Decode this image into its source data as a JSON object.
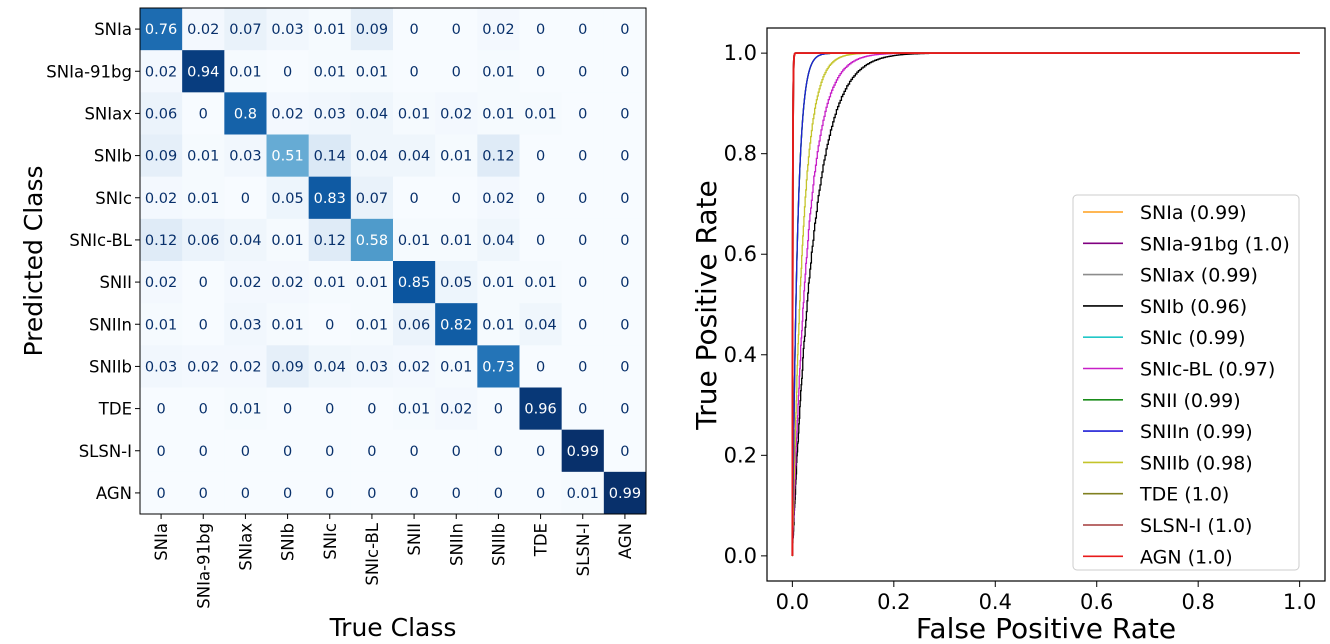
{
  "chart_data": [
    {
      "type": "heatmap",
      "title": "",
      "xlabel": "True Class",
      "ylabel": "Predicted Class",
      "categories": [
        "SNIa",
        "SNIa-91bg",
        "SNIax",
        "SNIb",
        "SNIc",
        "SNIc-BL",
        "SNII",
        "SNIIn",
        "SNIIb",
        "TDE",
        "SLSN-I",
        "AGN"
      ],
      "values": [
        [
          0.76,
          0.02,
          0.07,
          0.03,
          0.01,
          0.09,
          0,
          0,
          0.02,
          0,
          0,
          0
        ],
        [
          0.02,
          0.94,
          0.01,
          0,
          0.01,
          0.01,
          0,
          0,
          0.01,
          0,
          0,
          0
        ],
        [
          0.06,
          0,
          0.8,
          0.02,
          0.03,
          0.04,
          0.01,
          0.02,
          0.01,
          0.01,
          0,
          0
        ],
        [
          0.09,
          0.01,
          0.03,
          0.51,
          0.14,
          0.04,
          0.04,
          0.01,
          0.12,
          0,
          0,
          0
        ],
        [
          0.02,
          0.01,
          0,
          0.05,
          0.83,
          0.07,
          0,
          0,
          0.02,
          0,
          0,
          0
        ],
        [
          0.12,
          0.06,
          0.04,
          0.01,
          0.12,
          0.58,
          0.01,
          0.01,
          0.04,
          0,
          0,
          0
        ],
        [
          0.02,
          0,
          0.02,
          0.02,
          0.01,
          0.01,
          0.85,
          0.05,
          0.01,
          0.01,
          0,
          0
        ],
        [
          0.01,
          0,
          0.03,
          0.01,
          0,
          0.01,
          0.06,
          0.82,
          0.01,
          0.04,
          0,
          0
        ],
        [
          0.03,
          0.02,
          0.02,
          0.09,
          0.04,
          0.03,
          0.02,
          0.01,
          0.73,
          0,
          0,
          0
        ],
        [
          0,
          0,
          0.01,
          0,
          0,
          0,
          0.01,
          0.02,
          0,
          0.96,
          0,
          0
        ],
        [
          0,
          0,
          0,
          0,
          0,
          0,
          0,
          0,
          0,
          0,
          0.99,
          0
        ],
        [
          0,
          0,
          0,
          0,
          0,
          0,
          0,
          0,
          0,
          0,
          0.01,
          0.99
        ]
      ],
      "colormap": "Blues"
    },
    {
      "type": "line",
      "title": "",
      "xlabel": "False Positive Rate",
      "ylabel": "True Positive Rate",
      "xlim": [
        -0.05,
        1.05
      ],
      "ylim": [
        -0.05,
        1.05
      ],
      "xticks": [
        "0.0",
        "0.2",
        "0.4",
        "0.6",
        "0.8",
        "1.0"
      ],
      "yticks": [
        "0.0",
        "0.2",
        "0.4",
        "0.6",
        "0.8",
        "1.0"
      ],
      "legend_position": "lower-right",
      "series": [
        {
          "name": "SNIa (0.99)",
          "color": "#ff9f1c",
          "auc": 0.99
        },
        {
          "name": "SNIa-91bg (1.0)",
          "color": "#800080",
          "auc": 1.0
        },
        {
          "name": "SNIax (0.99)",
          "color": "#8c8c8c",
          "auc": 0.99
        },
        {
          "name": "SNIb (0.96)",
          "color": "#000000",
          "auc": 0.96
        },
        {
          "name": "SNIc (0.99)",
          "color": "#22c7c7",
          "auc": 0.99
        },
        {
          "name": "SNIc-BL (0.97)",
          "color": "#c71fc7",
          "auc": 0.97
        },
        {
          "name": "SNII (0.99)",
          "color": "#1a8c1a",
          "auc": 0.99
        },
        {
          "name": "SNIIn (0.99)",
          "color": "#1f1fd6",
          "auc": 0.99
        },
        {
          "name": "SNIIb (0.98)",
          "color": "#c4c42a",
          "auc": 0.98
        },
        {
          "name": "TDE (1.0)",
          "color": "#808020",
          "auc": 1.0
        },
        {
          "name": "SLSN-I (1.0)",
          "color": "#a33a3a",
          "auc": 1.0
        },
        {
          "name": "AGN (1.0)",
          "color": "#e81a1a",
          "auc": 1.0
        }
      ]
    }
  ]
}
